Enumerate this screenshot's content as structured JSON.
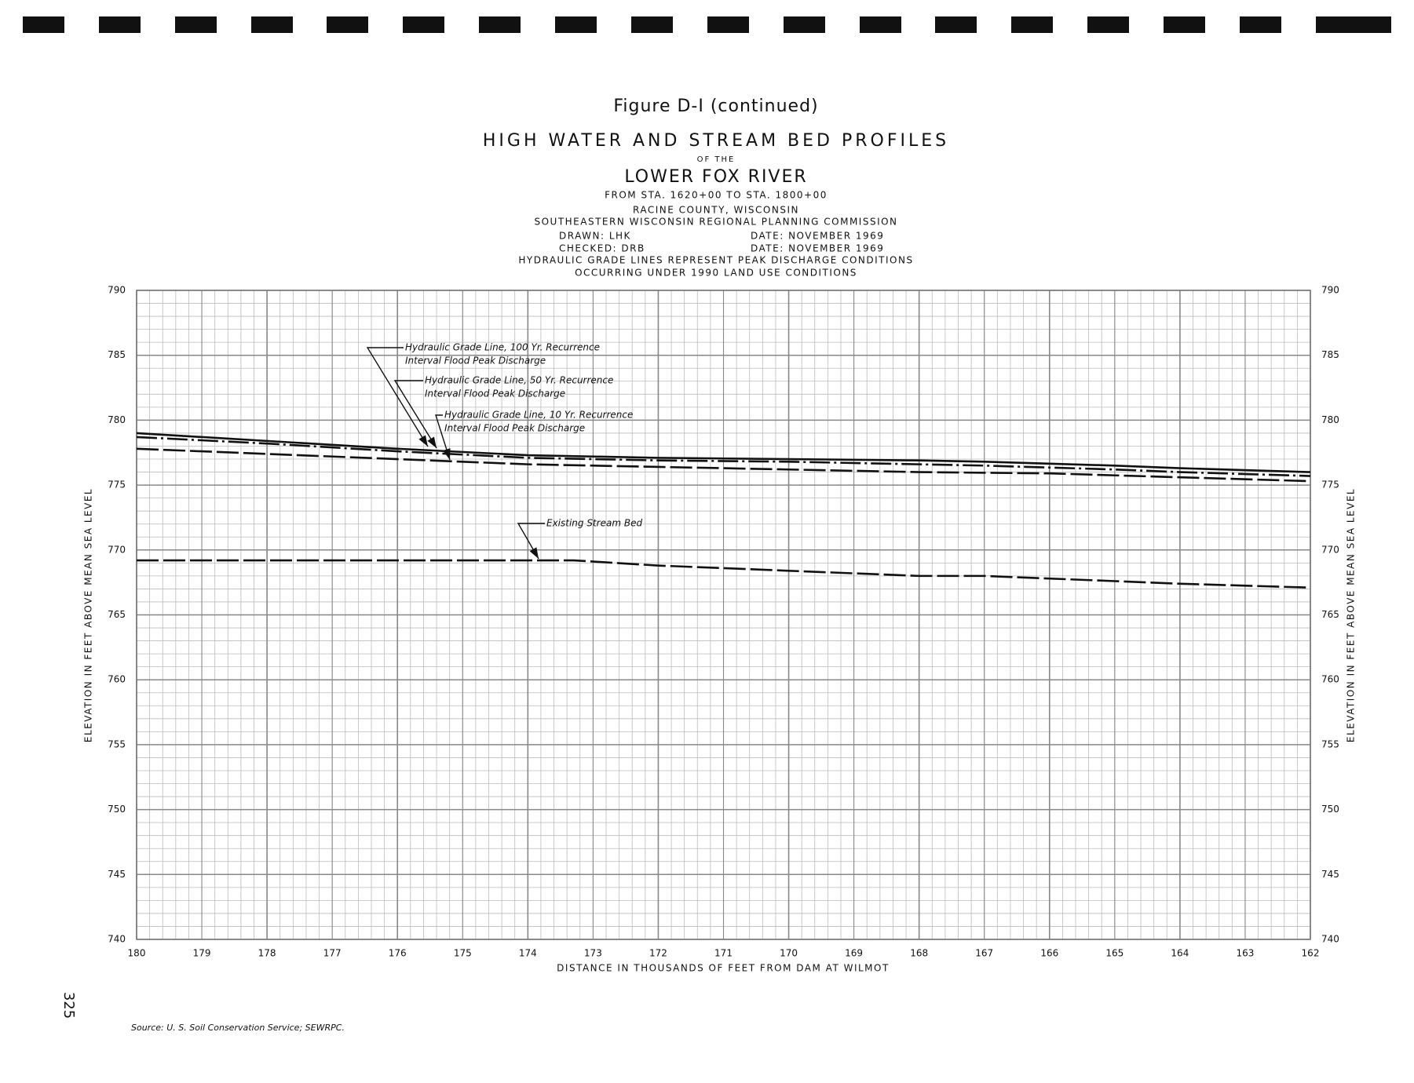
{
  "chart_data": {
    "type": "line",
    "title": "Figure D-I (continued)",
    "subtitle_lines": [
      "HIGH WATER AND STREAM BED PROFILES",
      "OF THE",
      "LOWER FOX RIVER",
      "FROM STA. 1620+00 TO STA. 1800+00",
      "RACINE COUNTY, WISCONSIN",
      "SOUTHEASTERN WISCONSIN REGIONAL PLANNING COMMISSION"
    ],
    "drawn": "DRAWN: LHK",
    "drawn_date": "DATE: NOVEMBER 1969",
    "checked": "CHECKED: DRB",
    "checked_date": "DATE: NOVEMBER 1969",
    "notes": [
      "HYDRAULIC GRADE LINES REPRESENT PEAK DISCHARGE CONDITIONS",
      "OCCURRING UNDER 1990 LAND USE CONDITIONS"
    ],
    "x_label": "DISTANCE IN THOUSANDS OF FEET FROM DAM AT WILMOT",
    "y_label": "ELEVATION IN FEET ABOVE MEAN SEA LEVEL",
    "page_number": "325",
    "source": "Source: U. S. Soil Conservation Service; SEWRPC.",
    "xlim": [
      180,
      162
    ],
    "xticks": [
      180,
      179,
      178,
      177,
      176,
      175,
      174,
      173,
      172,
      171,
      170,
      169,
      168,
      167,
      166,
      165,
      164,
      163,
      162
    ],
    "ylim": [
      740,
      790
    ],
    "yticks": [
      740,
      745,
      750,
      755,
      760,
      765,
      770,
      775,
      780,
      785,
      790
    ],
    "grid": true,
    "series": [
      {
        "label": [
          "Hydraulic Grade Line, 100 Yr. Recurrence",
          "Interval Flood Peak Discharge"
        ],
        "style": "solid",
        "color": "#111111",
        "x": [
          180,
          178,
          176,
          174,
          172,
          170,
          168,
          167,
          165,
          164,
          162
        ],
        "values": [
          779.0,
          778.4,
          777.8,
          777.3,
          777.1,
          777.0,
          776.9,
          776.8,
          776.5,
          776.3,
          776.0
        ]
      },
      {
        "label": [
          "Hydraulic Grade Line, 50 Yr. Recurrence",
          "Interval Flood Peak Discharge"
        ],
        "style": "dashdot",
        "color": "#111111",
        "x": [
          180,
          178,
          176,
          174,
          172,
          170,
          168,
          167,
          165,
          164,
          162
        ],
        "values": [
          778.7,
          778.2,
          777.6,
          777.1,
          776.9,
          776.8,
          776.6,
          776.5,
          776.2,
          776.0,
          775.7
        ]
      },
      {
        "label": [
          "Hydraulic Grade Line, 10 Yr. Recurrence",
          "Interval Flood Peak Discharge"
        ],
        "style": "dash",
        "color": "#111111",
        "x": [
          180,
          178,
          176,
          174,
          172,
          170,
          168,
          166,
          164,
          162
        ],
        "values": [
          777.8,
          777.4,
          777.0,
          776.6,
          776.4,
          776.2,
          776.0,
          775.9,
          775.6,
          775.3
        ]
      },
      {
        "label": [
          "Existing Stream Bed"
        ],
        "style": "dash",
        "color": "#111111",
        "x": [
          180,
          177,
          174.5,
          173.3,
          172,
          170,
          168,
          167,
          165,
          164,
          162
        ],
        "values": [
          769.2,
          769.2,
          769.2,
          769.2,
          768.8,
          768.4,
          768.0,
          768.0,
          767.6,
          767.4,
          767.1
        ]
      }
    ]
  }
}
